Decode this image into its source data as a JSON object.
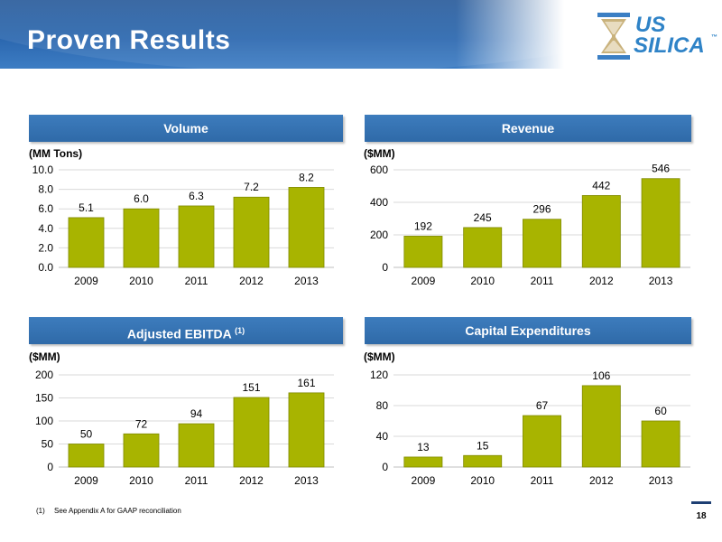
{
  "slide": {
    "title": "Proven Results",
    "footnote_number": "(1)",
    "footnote_text": "See Appendix A for GAAP reconciliation",
    "page_number": "18"
  },
  "logo": {
    "line1": "US",
    "line2": "SILICA",
    "tm": "™"
  },
  "colors": {
    "bar": "#a8b400",
    "bar_edge": "#7f8a00",
    "panel": "#2f6aa8",
    "grid": "#d9d9d9"
  },
  "panels": [
    {
      "title": "Volume",
      "title_sup": "",
      "unit": "(MM Tons)"
    },
    {
      "title": "Revenue",
      "title_sup": "",
      "unit": "($MM)"
    },
    {
      "title": "Adjusted EBITDA",
      "title_sup": "(1)",
      "unit": "($MM)"
    },
    {
      "title": "Capital Expenditures",
      "title_sup": "",
      "unit": "($MM)"
    }
  ],
  "chart_data": [
    {
      "type": "bar",
      "title": "Volume",
      "ylabel": "(MM Tons)",
      "categories": [
        "2009",
        "2010",
        "2011",
        "2012",
        "2013"
      ],
      "values": [
        5.1,
        6.0,
        6.3,
        7.2,
        8.2
      ],
      "value_labels": [
        "5.1",
        "6.0",
        "6.3",
        "7.2",
        "8.2"
      ],
      "ylim": [
        0,
        10
      ],
      "yticks": [
        "0.0",
        "2.0",
        "4.0",
        "6.0",
        "8.0",
        "10.0"
      ],
      "grid": true
    },
    {
      "type": "bar",
      "title": "Revenue",
      "ylabel": "($MM)",
      "categories": [
        "2009",
        "2010",
        "2011",
        "2012",
        "2013"
      ],
      "values": [
        192,
        245,
        296,
        442,
        546
      ],
      "value_labels": [
        "192",
        "245",
        "296",
        "442",
        "546"
      ],
      "ylim": [
        0,
        600
      ],
      "yticks": [
        "0",
        "200",
        "400",
        "600"
      ],
      "grid": true
    },
    {
      "type": "bar",
      "title": "Adjusted EBITDA",
      "ylabel": "($MM)",
      "categories": [
        "2009",
        "2010",
        "2011",
        "2012",
        "2013"
      ],
      "values": [
        50,
        72,
        94,
        151,
        161
      ],
      "value_labels": [
        "50",
        "72",
        "94",
        "151",
        "161"
      ],
      "ylim": [
        0,
        200
      ],
      "yticks": [
        "0",
        "50",
        "100",
        "150",
        "200"
      ],
      "grid": true
    },
    {
      "type": "bar",
      "title": "Capital Expenditures",
      "ylabel": "($MM)",
      "categories": [
        "2009",
        "2010",
        "2011",
        "2012",
        "2013"
      ],
      "values": [
        13,
        15,
        67,
        106,
        60
      ],
      "value_labels": [
        "13",
        "15",
        "67",
        "106",
        "60"
      ],
      "ylim": [
        0,
        120
      ],
      "yticks": [
        "0",
        "40",
        "80",
        "120"
      ],
      "grid": true
    }
  ]
}
